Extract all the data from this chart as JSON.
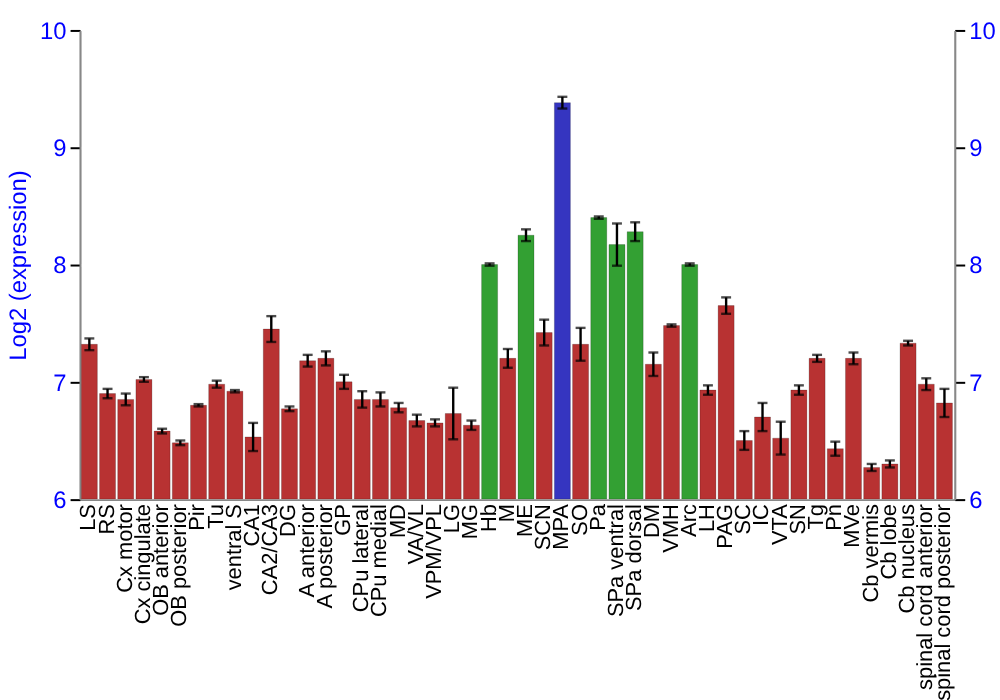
{
  "chart_data": {
    "type": "bar",
    "ylabel": "Log2 (expression)",
    "categories": [
      "LS",
      "RS",
      "Cx motor",
      "Cx cingulate",
      "OB anterior",
      "OB posterior",
      "Pir",
      "Tu",
      "ventral S",
      "CA1",
      "CA2/CA3",
      "DG",
      "A anterior",
      "A posterior",
      "GP",
      "CPu lateral",
      "CPu medial",
      "MD",
      "VA/VL",
      "VPM/VPL",
      "LG",
      "MG",
      "Hb",
      "M",
      "ME",
      "SCN",
      "MPA",
      "SO",
      "Pa",
      "SPa ventral",
      "SPa dorsal",
      "DM",
      "VMH",
      "Arc",
      "LH",
      "PAG",
      "SC",
      "IC",
      "VTA",
      "SN",
      "Tg",
      "Pn",
      "MVe",
      "Cb vermis",
      "Cb lobe",
      "Cb nucleus",
      "spinal cord anterior",
      "spinal cord posterior"
    ],
    "values": [
      7.32,
      6.9,
      6.85,
      7.02,
      6.58,
      6.48,
      6.8,
      6.98,
      6.92,
      6.53,
      7.45,
      6.77,
      7.18,
      7.2,
      7.0,
      6.85,
      6.85,
      6.78,
      6.67,
      6.65,
      6.73,
      6.63,
      8.0,
      7.2,
      8.25,
      7.42,
      9.38,
      7.32,
      8.4,
      8.17,
      8.28,
      7.15,
      7.48,
      8.0,
      6.93,
      7.65,
      6.5,
      6.7,
      6.52,
      6.93,
      7.2,
      6.43,
      7.2,
      6.27,
      6.3,
      7.33,
      6.98,
      6.82
    ],
    "errors": [
      0.05,
      0.04,
      0.05,
      0.02,
      0.02,
      0.02,
      0.01,
      0.03,
      0.01,
      0.12,
      0.11,
      0.02,
      0.05,
      0.06,
      0.06,
      0.07,
      0.06,
      0.04,
      0.05,
      0.03,
      0.22,
      0.04,
      0.01,
      0.08,
      0.05,
      0.11,
      0.05,
      0.14,
      0.01,
      0.18,
      0.08,
      0.1,
      0.01,
      0.01,
      0.04,
      0.07,
      0.08,
      0.12,
      0.14,
      0.04,
      0.03,
      0.06,
      0.05,
      0.03,
      0.03,
      0.02,
      0.05,
      0.12
    ],
    "colors": [
      "#b83232",
      "#b83232",
      "#b83232",
      "#b83232",
      "#b83232",
      "#b83232",
      "#b83232",
      "#b83232",
      "#b83232",
      "#b83232",
      "#b83232",
      "#b83232",
      "#b83232",
      "#b83232",
      "#b83232",
      "#b83232",
      "#b83232",
      "#b83232",
      "#b83232",
      "#b83232",
      "#b83232",
      "#b83232",
      "#33a033",
      "#b83232",
      "#33a033",
      "#b83232",
      "#3535c0",
      "#b83232",
      "#33a033",
      "#33a033",
      "#33a033",
      "#b83232",
      "#b83232",
      "#33a033",
      "#b83232",
      "#b83232",
      "#b83232",
      "#b83232",
      "#b83232",
      "#b83232",
      "#b83232",
      "#b83232",
      "#b83232",
      "#b83232",
      "#b83232",
      "#b83232",
      "#b83232",
      "#b83232"
    ],
    "ylim": [
      6,
      10
    ],
    "yticks": [
      6,
      7,
      8,
      9,
      10
    ],
    "y2lim": [
      6,
      10
    ],
    "y2ticks": [
      6,
      7,
      8,
      9,
      10
    ],
    "grid": "y"
  }
}
